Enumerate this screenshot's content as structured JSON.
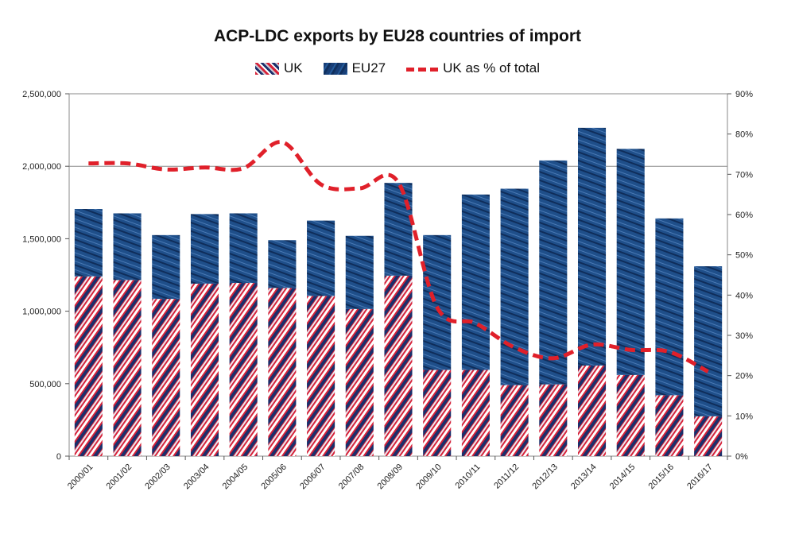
{
  "colors": {
    "uk_red": "#d6233a",
    "uk_navy": "#1b2f6b",
    "eu_blue": "#1f4f8a",
    "eu_dark": "#0f2d5a",
    "line_red": "#e0202a",
    "grid": "#8a8a8a"
  },
  "chart_data": {
    "type": "bar",
    "stacked": true,
    "title": "ACP-LDC exports by EU28 countries of import",
    "legend": [
      "UK",
      "EU27",
      "UK as % of total"
    ],
    "legend_placement": "top-center",
    "categories": [
      "2000/01",
      "2001/02",
      "2002/03",
      "2003/04",
      "2004/05",
      "2005/06",
      "2006/07",
      "2007/08",
      "2008/09",
      "2009/10",
      "2010/11",
      "2011/12",
      "2012/13",
      "2013/14",
      "2014/15",
      "2015/16",
      "2016/17"
    ],
    "series": [
      {
        "name": "UK",
        "type": "bar",
        "axis": "left",
        "values": [
          1240000,
          1215000,
          1085000,
          1190000,
          1195000,
          1160000,
          1105000,
          1015000,
          1245000,
          595000,
          595000,
          490000,
          495000,
          625000,
          560000,
          420000,
          275000
        ]
      },
      {
        "name": "EU27",
        "type": "bar",
        "axis": "left",
        "values": [
          465000,
          460000,
          440000,
          480000,
          480000,
          330000,
          520000,
          505000,
          640000,
          930000,
          1210000,
          1355000,
          1545000,
          1640000,
          1560000,
          1220000,
          1035000
        ]
      },
      {
        "name": "UK as % of total",
        "type": "line",
        "axis": "right",
        "style": "dashed",
        "values": [
          72.7,
          72.7,
          71.2,
          71.7,
          71.5,
          78,
          67.5,
          66.5,
          68,
          37,
          33,
          27,
          24.3,
          27.7,
          26.4,
          25.9,
          21
        ]
      }
    ],
    "y_left": {
      "min": 0,
      "max": 2500000,
      "ticks": [
        "0",
        "500,000",
        "1,000,000",
        "1,500,000",
        "2,000,000",
        "2,500,000"
      ],
      "tick_values": [
        0,
        500000,
        1000000,
        1500000,
        2000000,
        2500000
      ]
    },
    "y_right": {
      "min": 0,
      "max": 90,
      "ticks": [
        "0%",
        "10%",
        "20%",
        "30%",
        "40%",
        "50%",
        "60%",
        "70%",
        "80%",
        "90%"
      ],
      "tick_values": [
        0,
        10,
        20,
        30,
        40,
        50,
        60,
        70,
        80,
        90
      ]
    },
    "grid": true,
    "gridlines_at": [
      2000000
    ]
  }
}
